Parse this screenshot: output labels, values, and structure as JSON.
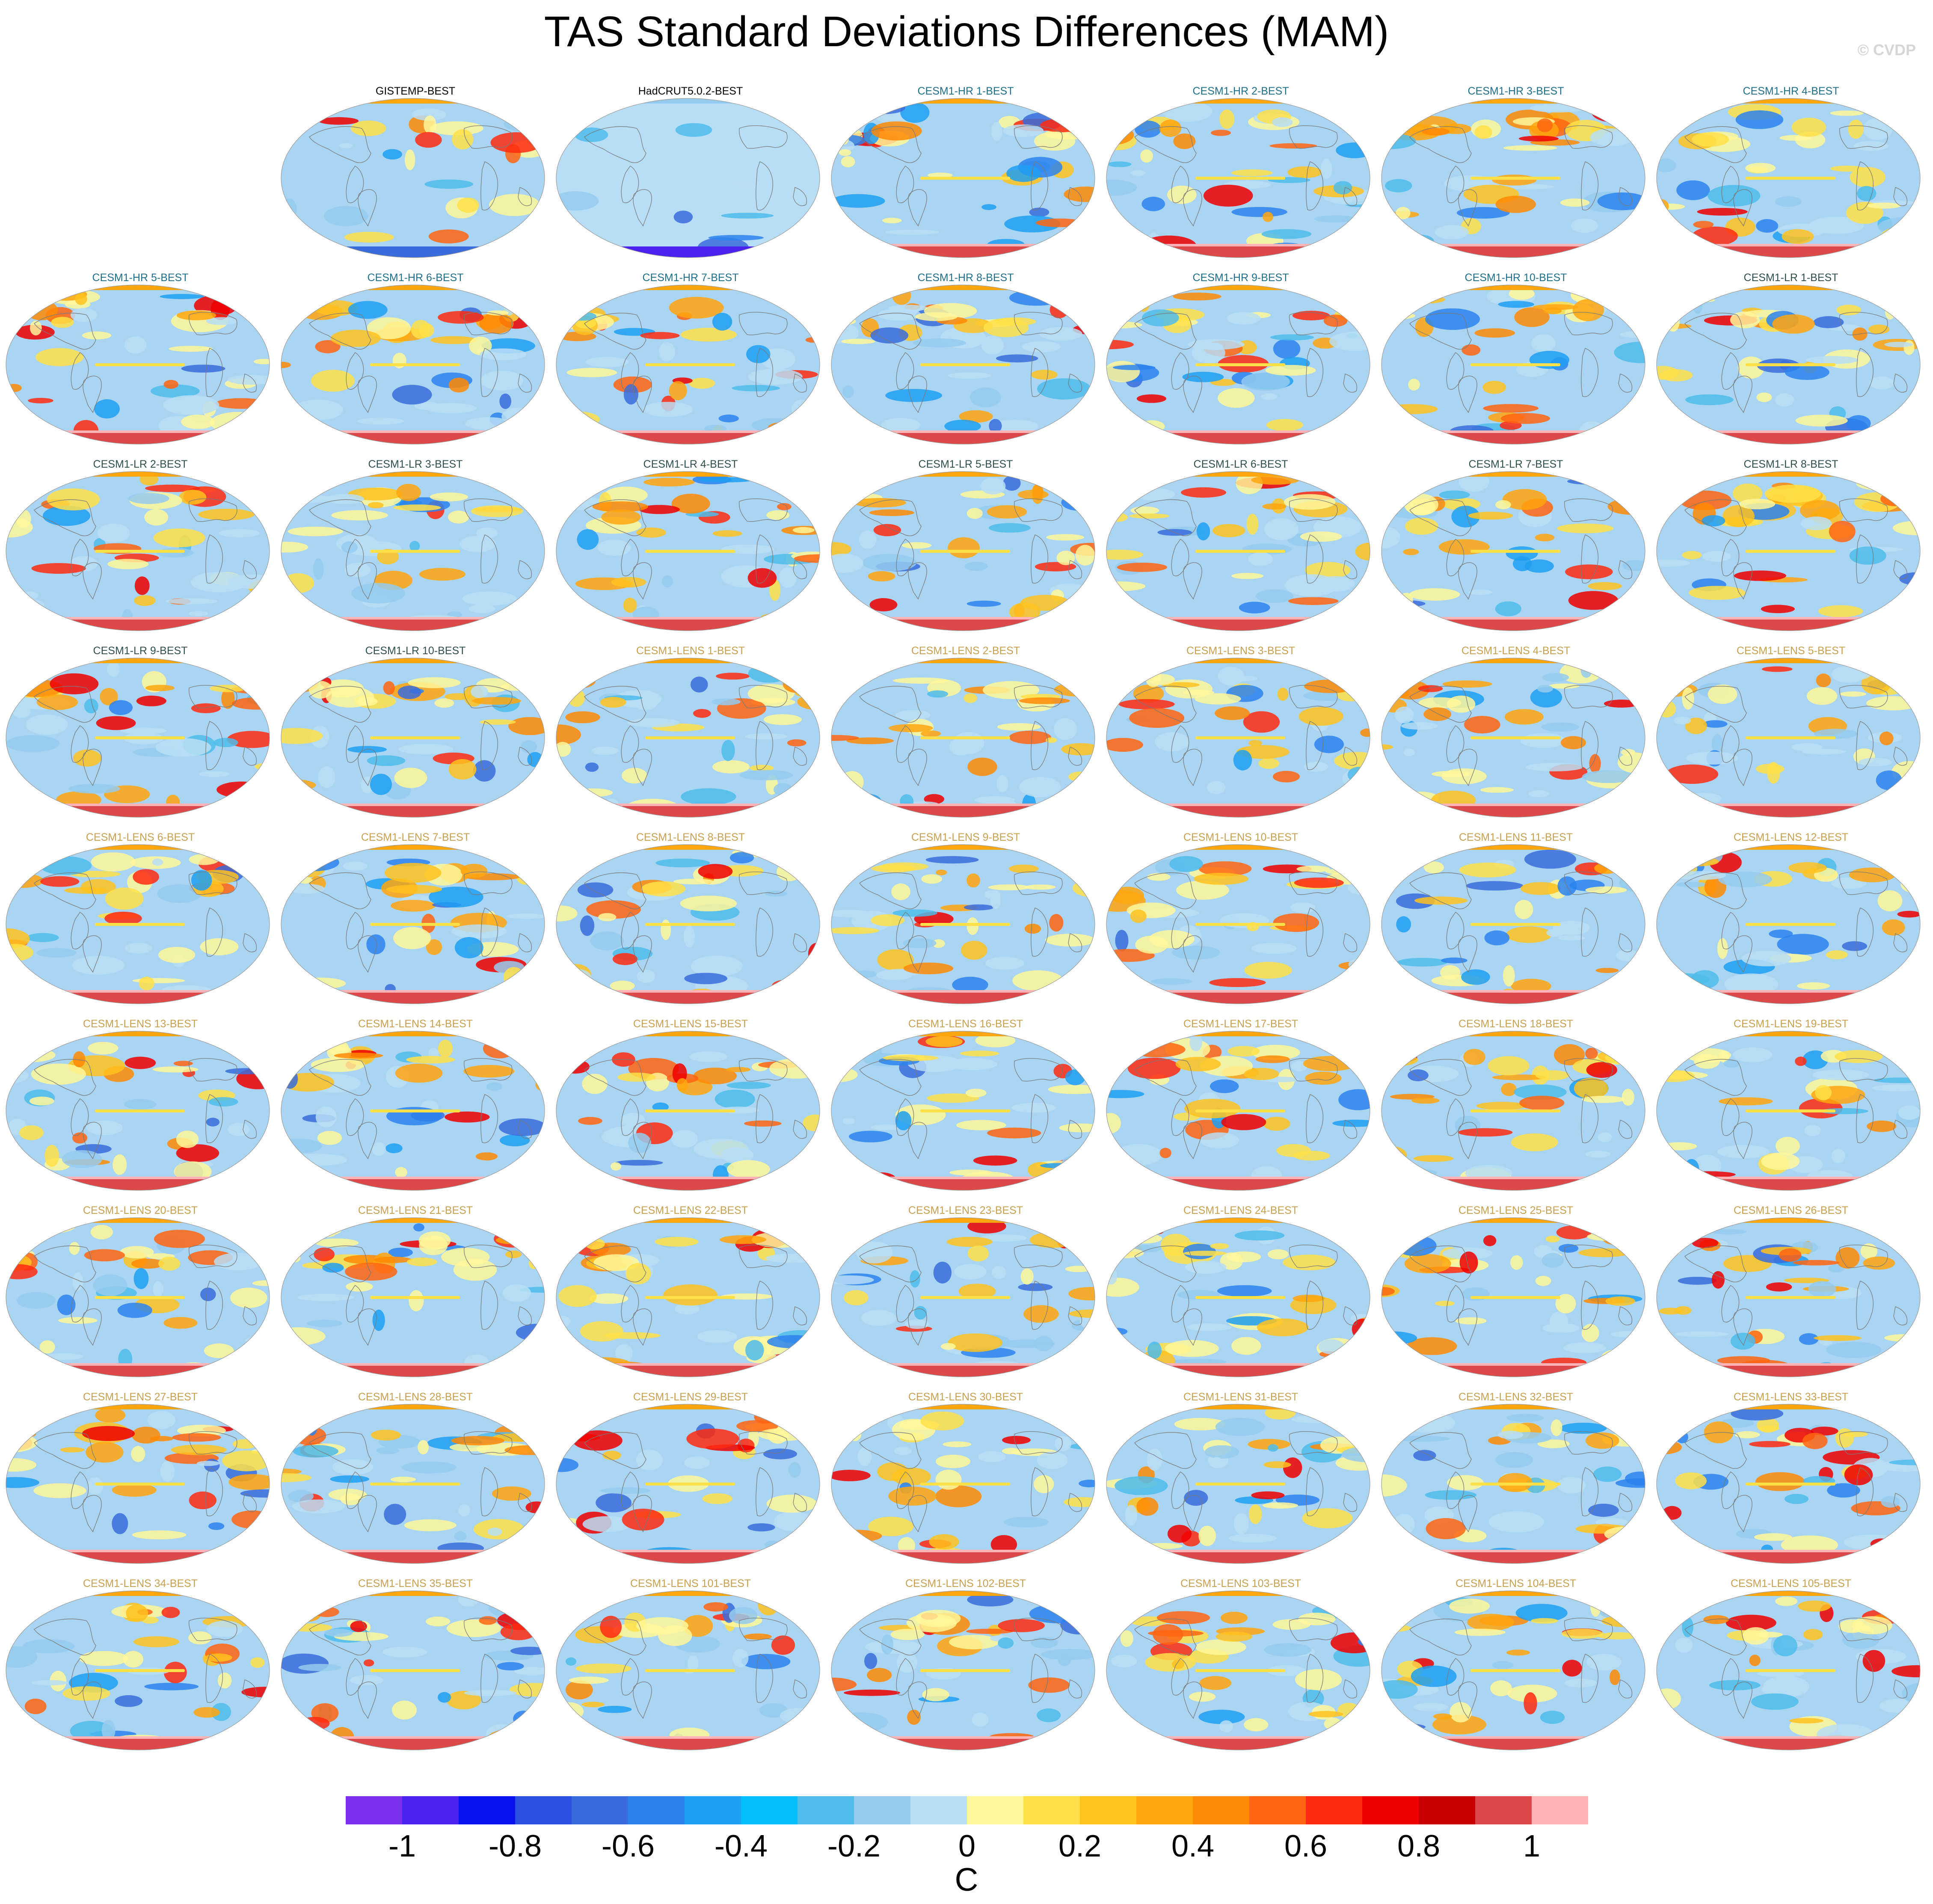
{
  "title": "TAS Standard Deviations Differences (MAM)",
  "watermark": "© CVDP",
  "colors": {
    "obs_title": "#000000",
    "hr_title": "#1f6f8b",
    "lr_title": "#2f4f4f",
    "lens_title": "#c8a050",
    "coastline": "#7a7a7a"
  },
  "chart_data": {
    "type": "heatmap",
    "projection": "global ellipse (Robinson-like), Pacific-centered",
    "variable": "TAS standard deviation differences",
    "season": "MAM",
    "units": "C",
    "color_levels": [
      -1.1,
      -1.0,
      -0.9,
      -0.8,
      -0.7,
      -0.6,
      -0.5,
      -0.4,
      -0.3,
      -0.2,
      -0.1,
      0,
      0.1,
      0.2,
      0.3,
      0.4,
      0.5,
      0.6,
      0.7,
      0.8,
      0.9,
      1.0,
      1.1
    ],
    "colorbar_colors": [
      "#7b2fef",
      "#4a22f0",
      "#0a12f0",
      "#2d4fe0",
      "#3a6cdc",
      "#2b82ee",
      "#1f9ff2",
      "#05bdfa",
      "#4fbceb",
      "#95cbef",
      "#b8def5",
      "#fff79a",
      "#ffe048",
      "#ffc21e",
      "#ffa60e",
      "#ff8a05",
      "#ff6510",
      "#ff2a10",
      "#ee0000",
      "#c80000",
      "#dd4848",
      "#ffb3b7"
    ],
    "colorbar_tick_labels": [
      "-1",
      "-0.8",
      "-0.6",
      "-0.4",
      "-0.2",
      "0",
      "0.2",
      "0.4",
      "0.6",
      "0.8",
      "1"
    ],
    "colorbar_tick_values": [
      -1,
      -0.8,
      -0.6,
      -0.4,
      -0.2,
      0,
      0.2,
      0.4,
      0.6,
      0.8,
      1
    ],
    "colorbar_label": "C",
    "panels": [
      {
        "title": "GISTEMP-BEST",
        "group": "obs"
      },
      {
        "title": "HadCRUT5.0.2-BEST",
        "group": "obs"
      },
      {
        "title": "CESM1-HR 1-BEST",
        "group": "hr"
      },
      {
        "title": "CESM1-HR 2-BEST",
        "group": "hr"
      },
      {
        "title": "CESM1-HR 3-BEST",
        "group": "hr"
      },
      {
        "title": "CESM1-HR 4-BEST",
        "group": "hr"
      },
      {
        "title": "CESM1-HR 5-BEST",
        "group": "hr"
      },
      {
        "title": "CESM1-HR 6-BEST",
        "group": "hr"
      },
      {
        "title": "CESM1-HR 7-BEST",
        "group": "hr"
      },
      {
        "title": "CESM1-HR 8-BEST",
        "group": "hr"
      },
      {
        "title": "CESM1-HR 9-BEST",
        "group": "hr"
      },
      {
        "title": "CESM1-HR 10-BEST",
        "group": "hr"
      },
      {
        "title": "CESM1-LR 1-BEST",
        "group": "lr"
      },
      {
        "title": "CESM1-LR 2-BEST",
        "group": "lr"
      },
      {
        "title": "CESM1-LR 3-BEST",
        "group": "lr"
      },
      {
        "title": "CESM1-LR 4-BEST",
        "group": "lr"
      },
      {
        "title": "CESM1-LR 5-BEST",
        "group": "lr"
      },
      {
        "title": "CESM1-LR 6-BEST",
        "group": "lr"
      },
      {
        "title": "CESM1-LR 7-BEST",
        "group": "lr"
      },
      {
        "title": "CESM1-LR 8-BEST",
        "group": "lr"
      },
      {
        "title": "CESM1-LR 9-BEST",
        "group": "lr"
      },
      {
        "title": "CESM1-LR 10-BEST",
        "group": "lr"
      },
      {
        "title": "CESM1-LENS 1-BEST",
        "group": "lens"
      },
      {
        "title": "CESM1-LENS 2-BEST",
        "group": "lens"
      },
      {
        "title": "CESM1-LENS 3-BEST",
        "group": "lens"
      },
      {
        "title": "CESM1-LENS 4-BEST",
        "group": "lens"
      },
      {
        "title": "CESM1-LENS 5-BEST",
        "group": "lens"
      },
      {
        "title": "CESM1-LENS 6-BEST",
        "group": "lens"
      },
      {
        "title": "CESM1-LENS 7-BEST",
        "group": "lens"
      },
      {
        "title": "CESM1-LENS 8-BEST",
        "group": "lens"
      },
      {
        "title": "CESM1-LENS 9-BEST",
        "group": "lens"
      },
      {
        "title": "CESM1-LENS 10-BEST",
        "group": "lens"
      },
      {
        "title": "CESM1-LENS 11-BEST",
        "group": "lens"
      },
      {
        "title": "CESM1-LENS 12-BEST",
        "group": "lens"
      },
      {
        "title": "CESM1-LENS 13-BEST",
        "group": "lens"
      },
      {
        "title": "CESM1-LENS 14-BEST",
        "group": "lens"
      },
      {
        "title": "CESM1-LENS 15-BEST",
        "group": "lens"
      },
      {
        "title": "CESM1-LENS 16-BEST",
        "group": "lens"
      },
      {
        "title": "CESM1-LENS 17-BEST",
        "group": "lens"
      },
      {
        "title": "CESM1-LENS 18-BEST",
        "group": "lens"
      },
      {
        "title": "CESM1-LENS 19-BEST",
        "group": "lens"
      },
      {
        "title": "CESM1-LENS 20-BEST",
        "group": "lens"
      },
      {
        "title": "CESM1-LENS 21-BEST",
        "group": "lens"
      },
      {
        "title": "CESM1-LENS 22-BEST",
        "group": "lens"
      },
      {
        "title": "CESM1-LENS 23-BEST",
        "group": "lens"
      },
      {
        "title": "CESM1-LENS 24-BEST",
        "group": "lens"
      },
      {
        "title": "CESM1-LENS 25-BEST",
        "group": "lens"
      },
      {
        "title": "CESM1-LENS 26-BEST",
        "group": "lens"
      },
      {
        "title": "CESM1-LENS 27-BEST",
        "group": "lens"
      },
      {
        "title": "CESM1-LENS 28-BEST",
        "group": "lens"
      },
      {
        "title": "CESM1-LENS 29-BEST",
        "group": "lens"
      },
      {
        "title": "CESM1-LENS 30-BEST",
        "group": "lens"
      },
      {
        "title": "CESM1-LENS 31-BEST",
        "group": "lens"
      },
      {
        "title": "CESM1-LENS 32-BEST",
        "group": "lens"
      },
      {
        "title": "CESM1-LENS 33-BEST",
        "group": "lens"
      },
      {
        "title": "CESM1-LENS 34-BEST",
        "group": "lens"
      },
      {
        "title": "CESM1-LENS 35-BEST",
        "group": "lens"
      },
      {
        "title": "CESM1-LENS 101-BEST",
        "group": "lens"
      },
      {
        "title": "CESM1-LENS 102-BEST",
        "group": "lens"
      },
      {
        "title": "CESM1-LENS 103-BEST",
        "group": "lens"
      },
      {
        "title": "CESM1-LENS 104-BEST",
        "group": "lens"
      },
      {
        "title": "CESM1-LENS 105-BEST",
        "group": "lens"
      }
    ]
  }
}
